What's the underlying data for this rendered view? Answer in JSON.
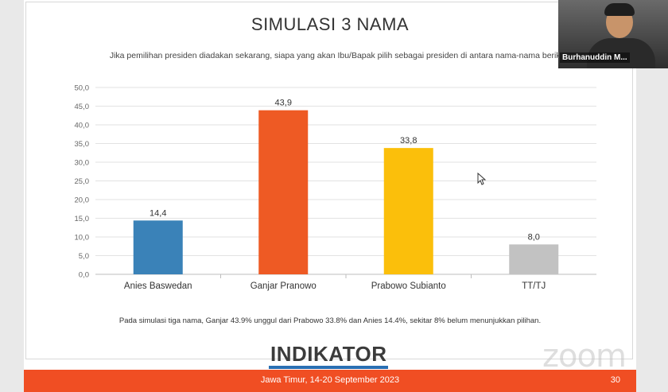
{
  "slide": {
    "title": "SIMULASI 3 NAMA",
    "subtitle": "Jika pemilihan presiden diadakan sekarang, siapa yang akan Ibu/Bapak pilih sebagai presiden di antara nama-nama berikut ?",
    "footnote": "Pada simulasi tiga nama, Ganjar 43.9% unggul dari Prabowo 33.8% dan Anies 14.4%, sekitar 8% belum menunjukkan pilihan.",
    "logo": "INDIKATOR",
    "footer_text": "Jawa Timur, 14-20 September 2023",
    "page_number": "30"
  },
  "video": {
    "participant_name": "Burhanuddin M...",
    "watermark": "zoom"
  },
  "chart_data": {
    "type": "bar",
    "categories": [
      "Anies Baswedan",
      "Ganjar Pranowo",
      "Prabowo Subianto",
      "TT/TJ"
    ],
    "values": [
      14.4,
      43.9,
      33.8,
      8.0
    ],
    "value_labels": [
      "14,4",
      "43,9",
      "33,8",
      "8,0"
    ],
    "colors": [
      "#3a82b8",
      "#ee5a24",
      "#fbbf0b",
      "#c2c2c2"
    ],
    "ylim": [
      0,
      50
    ],
    "yticks": [
      "0,0",
      "5,0",
      "10,0",
      "15,0",
      "20,0",
      "25,0",
      "30,0",
      "35,0",
      "40,0",
      "45,0",
      "50,0"
    ],
    "ytick_values": [
      0,
      5,
      10,
      15,
      20,
      25,
      30,
      35,
      40,
      45,
      50
    ],
    "grid": true,
    "xlabel": "",
    "ylabel": ""
  }
}
